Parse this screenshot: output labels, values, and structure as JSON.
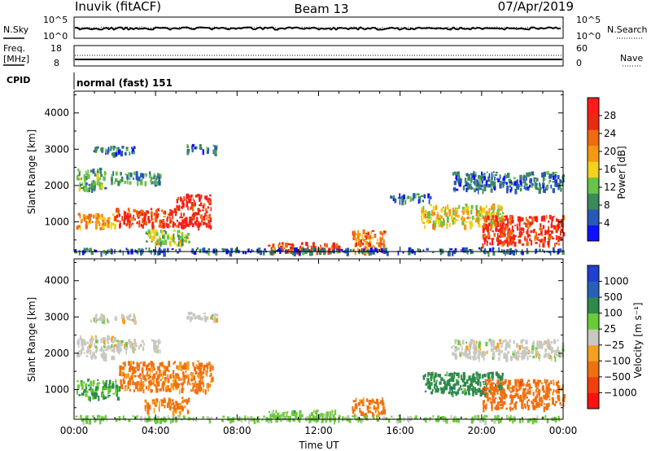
{
  "header": {
    "station": "Inuvik (fitACF)",
    "beam": "Beam 13",
    "date": "07/Apr/2019"
  },
  "panels": {
    "nsky": {
      "left_label": "N.Sky",
      "left_ticks": [
        "10^5",
        "10^0"
      ],
      "right_ticks": [
        "10^5",
        "10^0"
      ],
      "right_label": "N.Search"
    },
    "freq": {
      "left_label_1": "Freq.",
      "left_label_2": "[MHz]",
      "left_ticks": [
        "18",
        "8"
      ],
      "right_ticks": [
        "60",
        "0"
      ],
      "right_label": "Nave"
    },
    "cpid": {
      "label": "CPID",
      "mode": "normal (fast) 151"
    }
  },
  "colors": {
    "power": [
      "#1010ff",
      "#2858b8",
      "#3a8a5a",
      "#69c24a",
      "#f2d21a",
      "#f59a10",
      "#f06a10",
      "#e82a10",
      "#ff1a1a"
    ],
    "velocity": [
      "#ff1010",
      "#f04010",
      "#f07010",
      "#f5a020",
      "#c8c8c0",
      "#6acb38",
      "#2e8a4a",
      "#2860b8",
      "#2040d0"
    ]
  },
  "chart_data": [
    {
      "type": "heatmap",
      "name": "power",
      "xlabel": "",
      "ylabel": "Slant Range [km]",
      "x_ticks": [
        "00:00",
        "04:00",
        "08:00",
        "12:00",
        "16:00",
        "20:00",
        "00:00"
      ],
      "xlim_hours": [
        0,
        24
      ],
      "y_ticks": [
        1000,
        2000,
        3000,
        4000
      ],
      "ylim": [
        180,
        4600
      ],
      "colorbar": {
        "label": "Power [dB]",
        "ticks": [
          4,
          8,
          12,
          16,
          20,
          24,
          28
        ],
        "range": [
          0,
          32
        ]
      },
      "blobs": [
        {
          "t0": 0.1,
          "t1": 2.0,
          "r0": 850,
          "r1": 1250,
          "v": 20
        },
        {
          "t0": 2.0,
          "t1": 5.0,
          "r0": 900,
          "r1": 1400,
          "v": 26
        },
        {
          "t0": 5.0,
          "t1": 6.7,
          "r0": 900,
          "r1": 1800,
          "v": 28
        },
        {
          "t0": 0.1,
          "t1": 1.5,
          "r0": 1900,
          "r1": 2500,
          "v": 11
        },
        {
          "t0": 1.8,
          "t1": 4.2,
          "r0": 2100,
          "r1": 2400,
          "v": 9
        },
        {
          "t0": 0.8,
          "t1": 3.0,
          "r0": 2900,
          "r1": 3100,
          "v": 7
        },
        {
          "t0": 5.5,
          "t1": 7.0,
          "r0": 2950,
          "r1": 3150,
          "v": 7
        },
        {
          "t0": 3.4,
          "t1": 5.6,
          "r0": 400,
          "r1": 800,
          "v": 14
        },
        {
          "t0": 9.5,
          "t1": 13.0,
          "r0": 200,
          "r1": 450,
          "v": 26
        },
        {
          "t0": 13.6,
          "t1": 15.2,
          "r0": 200,
          "r1": 800,
          "v": 22
        },
        {
          "t0": 15.5,
          "t1": 17.5,
          "r0": 1600,
          "r1": 1800,
          "v": 7
        },
        {
          "t0": 17.0,
          "t1": 21.0,
          "r0": 900,
          "r1": 1500,
          "v": 17
        },
        {
          "t0": 20.0,
          "t1": 24.0,
          "r0": 400,
          "r1": 1200,
          "v": 27
        },
        {
          "t0": 18.5,
          "t1": 24.0,
          "r0": 1900,
          "r1": 2400,
          "v": 7
        },
        {
          "t0": 0.0,
          "t1": 24.0,
          "r0": 180,
          "r1": 300,
          "v": 6
        }
      ]
    },
    {
      "type": "heatmap",
      "name": "velocity",
      "xlabel": "Time UT",
      "ylabel": "Slant Range [km]",
      "x_ticks": [
        "00:00",
        "04:00",
        "08:00",
        "12:00",
        "16:00",
        "20:00",
        "00:00"
      ],
      "xlim_hours": [
        0,
        24
      ],
      "y_ticks": [
        1000,
        2000,
        3000,
        4000
      ],
      "ylim": [
        180,
        4600
      ],
      "colorbar": {
        "label": "Velocity [m s⁻¹]",
        "ticks": [
          "1000",
          "500",
          "100",
          "25",
          "−25",
          "−100",
          "−500",
          "−1000"
        ]
      },
      "blobs": [
        {
          "t0": 0.1,
          "t1": 2.2,
          "r0": 800,
          "r1": 1300,
          "v": 100
        },
        {
          "t0": 2.2,
          "t1": 6.8,
          "r0": 1000,
          "r1": 1800,
          "v": -150
        },
        {
          "t0": 0.1,
          "t1": 2.0,
          "r0": 1900,
          "r1": 2500,
          "v": 0
        },
        {
          "t0": 1.8,
          "t1": 4.2,
          "r0": 2100,
          "r1": 2400,
          "v": 0
        },
        {
          "t0": 0.8,
          "t1": 3.0,
          "r0": 2900,
          "r1": 3100,
          "v": 0
        },
        {
          "t0": 5.5,
          "t1": 7.0,
          "r0": 2950,
          "r1": 3150,
          "v": 0
        },
        {
          "t0": 3.4,
          "t1": 5.6,
          "r0": 400,
          "r1": 800,
          "v": -150
        },
        {
          "t0": 9.5,
          "t1": 13.0,
          "r0": 200,
          "r1": 450,
          "v": 60
        },
        {
          "t0": 13.6,
          "t1": 15.2,
          "r0": 300,
          "r1": 800,
          "v": -200
        },
        {
          "t0": 17.0,
          "t1": 21.0,
          "r0": 900,
          "r1": 1500,
          "v": 300
        },
        {
          "t0": 20.0,
          "t1": 24.0,
          "r0": 500,
          "r1": 1300,
          "v": -300
        },
        {
          "t0": 18.5,
          "t1": 24.0,
          "r0": 1900,
          "r1": 2400,
          "v": 0
        },
        {
          "t0": 0.0,
          "t1": 24.0,
          "r0": 180,
          "r1": 300,
          "v": 40
        }
      ]
    }
  ]
}
